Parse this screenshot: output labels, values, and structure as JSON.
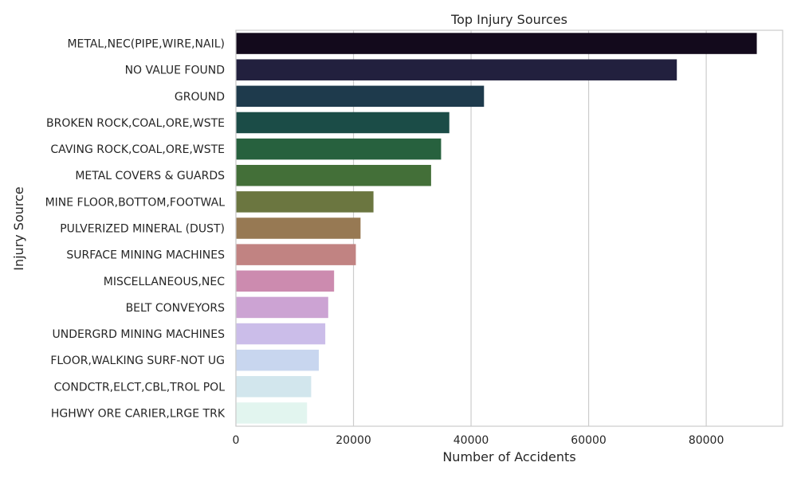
{
  "chart_data": {
    "type": "bar",
    "orientation": "horizontal",
    "title": "Top Injury Sources",
    "xlabel": "Number of Accidents",
    "ylabel": "Injury Source",
    "xlim": [
      0,
      93000
    ],
    "xticks": [
      0,
      20000,
      40000,
      60000,
      80000
    ],
    "grid": "vertical",
    "categories": [
      "METAL,NEC(PIPE,WIRE,NAIL)",
      "NO VALUE FOUND",
      "GROUND",
      "BROKEN ROCK,COAL,ORE,WSTE",
      "CAVING ROCK,COAL,ORE,WSTE",
      "METAL COVERS & GUARDS",
      "MINE FLOOR,BOTTOM,FOOTWAL",
      "PULVERIZED MINERAL (DUST)",
      "SURFACE MINING MACHINES",
      "MISCELLANEOUS,NEC",
      "BELT CONVEYORS",
      "UNDERGRD MINING MACHINES",
      "FLOOR,WALKING SURF-NOT UG",
      "CONDCTR,ELCT,CBL,TROL POL",
      "HGHWY ORE CARIER,LRGE TRK"
    ],
    "values": [
      88600,
      75000,
      42200,
      36300,
      34900,
      33200,
      23400,
      21200,
      20400,
      16700,
      15700,
      15200,
      14100,
      12800,
      12100
    ],
    "colors": [
      "#130a1c",
      "#22203e",
      "#1e3a4c",
      "#1b4c47",
      "#27613e",
      "#436f38",
      "#6b7640",
      "#977953",
      "#c18382",
      "#cc8baf",
      "#cca3d3",
      "#cbbde9",
      "#c8d6ef",
      "#d2e6ed",
      "#e2f5ef"
    ]
  }
}
